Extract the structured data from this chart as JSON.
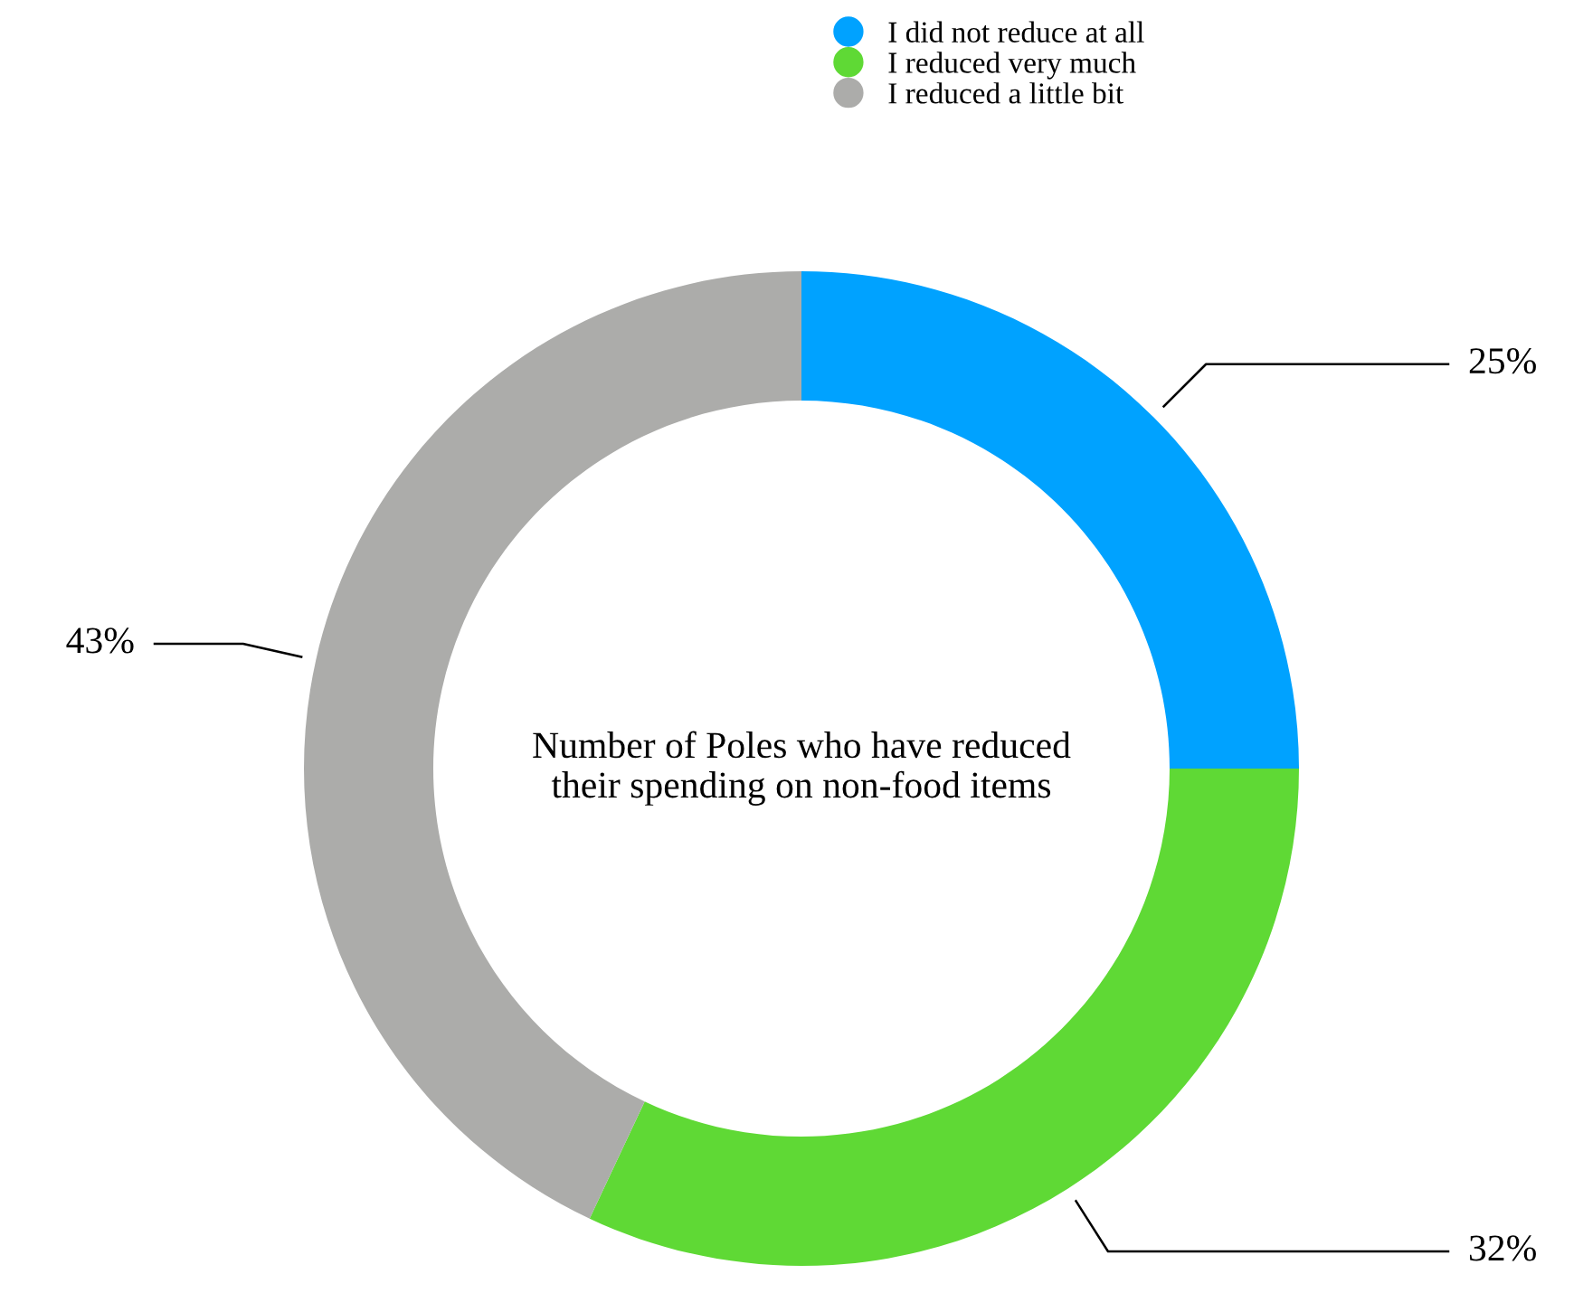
{
  "chart_data": {
    "type": "donut",
    "title": "Number of Poles who have reduced their spending on non-food items",
    "categories": [
      "I did not reduce at all",
      "I reduced very much",
      "I reduced a little bit"
    ],
    "values": [
      25,
      32,
      43
    ],
    "colors": [
      "#00a2ff",
      "#5fd935",
      "#acacaa"
    ],
    "value_labels": [
      "25%",
      "32%",
      "43%"
    ],
    "legend": "top"
  }
}
